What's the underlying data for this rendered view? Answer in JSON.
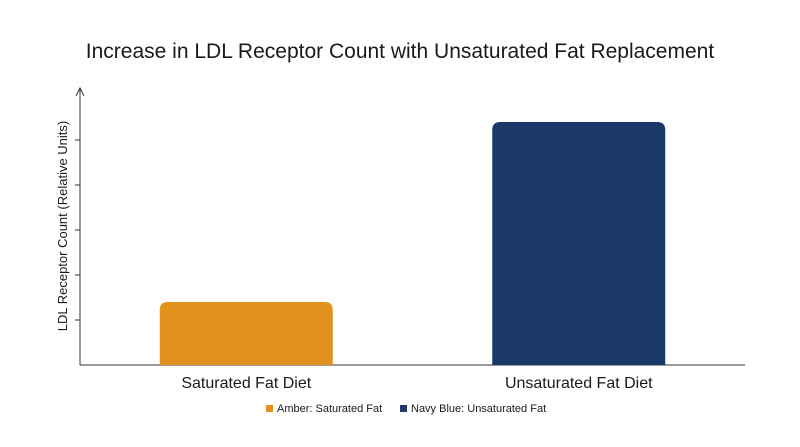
{
  "chart_data": {
    "type": "bar",
    "title": "Increase in LDL Receptor Count with Unsaturated Fat Replacement",
    "xlabel": "",
    "ylabel": "LDL Receptor Count (Relative Units)",
    "categories": [
      "Saturated Fat Diet",
      "Unsaturated Fat Diet"
    ],
    "values": [
      1.4,
      5.4
    ],
    "ylim": [
      0,
      6
    ],
    "y_ticks": [
      1,
      2,
      3,
      4,
      5
    ],
    "y_tick_labels_visible": false,
    "bar_colors": [
      "#E0921C",
      "#1B3A6B"
    ],
    "grid": false,
    "legend": {
      "placement": "bottom-center",
      "entries": [
        {
          "label": "Amber: Saturated Fat",
          "color": "#E0921C"
        },
        {
          "label": "Navy Blue: Unsaturated Fat",
          "color": "#1B3A6B"
        }
      ]
    }
  }
}
